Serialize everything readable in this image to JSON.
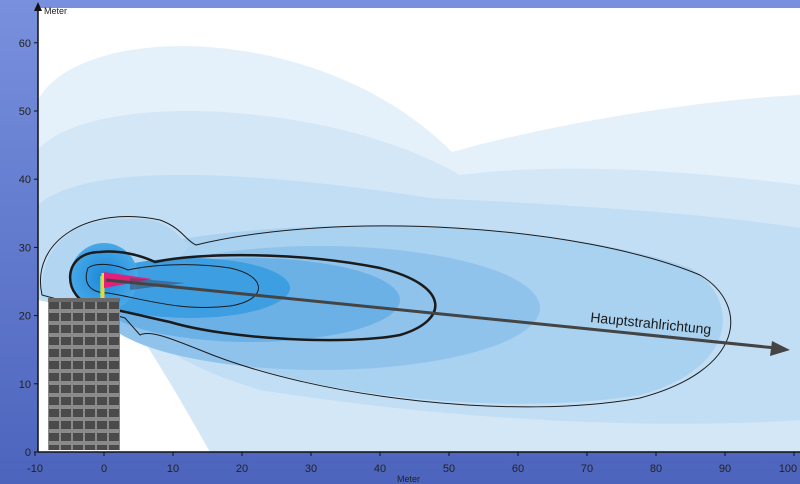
{
  "chart_data": {
    "type": "diagram",
    "y_axis_label": "Meter",
    "x_axis_label": "Meter",
    "x_ticks": [
      "-10",
      "0",
      "10",
      "20",
      "30",
      "40",
      "50",
      "60",
      "70",
      "80",
      "90",
      "100"
    ],
    "y_ticks": [
      "0",
      "10",
      "20",
      "30",
      "40",
      "50",
      "60"
    ],
    "xlim": [
      -10,
      100
    ],
    "ylim": [
      0,
      62
    ],
    "annotation": "Hauptstrahlrichtung",
    "colors": {
      "slide_background": "#5b73c8",
      "plot_background": "#ffffff",
      "field_light": "#dcebf8",
      "field_mid": "#9fcbed",
      "field_strong": "#2d9ae0",
      "antenna_core": "#e0207a",
      "building": "#5a5a5a",
      "arrow": "#444444"
    }
  }
}
